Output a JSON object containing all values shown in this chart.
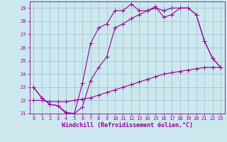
{
  "xlabel": "Windchill (Refroidissement éolien,°C)",
  "xlim": [
    -0.5,
    23.5
  ],
  "ylim": [
    21,
    29.5
  ],
  "xticks": [
    0,
    1,
    2,
    3,
    4,
    5,
    6,
    7,
    8,
    9,
    10,
    11,
    12,
    13,
    14,
    15,
    16,
    17,
    18,
    19,
    20,
    21,
    22,
    23
  ],
  "yticks": [
    21,
    22,
    23,
    24,
    25,
    26,
    27,
    28,
    29
  ],
  "background_color": "#cce8ee",
  "grid_color": "#9bbfcc",
  "line_color": "#990099",
  "line1_x": [
    0,
    1,
    2,
    3,
    4,
    5,
    6,
    7,
    8,
    9,
    10,
    11,
    12,
    13,
    14,
    15,
    16,
    17,
    18,
    19,
    20,
    21,
    22,
    23
  ],
  "line1_y": [
    23.0,
    22.2,
    21.7,
    21.6,
    21.1,
    21.0,
    23.3,
    26.3,
    27.5,
    27.8,
    28.8,
    28.8,
    29.3,
    28.8,
    28.8,
    29.0,
    28.8,
    29.0,
    29.0,
    29.0,
    28.5,
    26.5,
    25.2,
    24.5
  ],
  "line2_x": [
    0,
    1,
    2,
    3,
    4,
    5,
    6,
    7,
    8,
    9,
    10,
    11,
    12,
    13,
    14,
    15,
    16,
    17,
    18,
    19,
    20,
    21,
    22,
    23
  ],
  "line2_y": [
    23.0,
    22.2,
    21.7,
    21.6,
    21.0,
    21.0,
    21.5,
    23.5,
    24.5,
    25.3,
    27.5,
    27.8,
    28.2,
    28.5,
    28.8,
    29.1,
    28.3,
    28.5,
    29.0,
    29.0,
    28.5,
    26.5,
    25.2,
    24.5
  ],
  "line3_x": [
    0,
    1,
    2,
    3,
    4,
    5,
    6,
    7,
    8,
    9,
    10,
    11,
    12,
    13,
    14,
    15,
    16,
    17,
    18,
    19,
    20,
    21,
    22,
    23
  ],
  "line3_y": [
    22.0,
    22.0,
    21.9,
    21.9,
    21.9,
    22.0,
    22.1,
    22.2,
    22.4,
    22.6,
    22.8,
    23.0,
    23.2,
    23.4,
    23.6,
    23.8,
    24.0,
    24.1,
    24.2,
    24.3,
    24.4,
    24.5,
    24.5,
    24.5
  ],
  "marker": "+",
  "markersize": 4,
  "linewidth": 0.8,
  "tick_fontsize": 5,
  "label_fontsize": 6
}
